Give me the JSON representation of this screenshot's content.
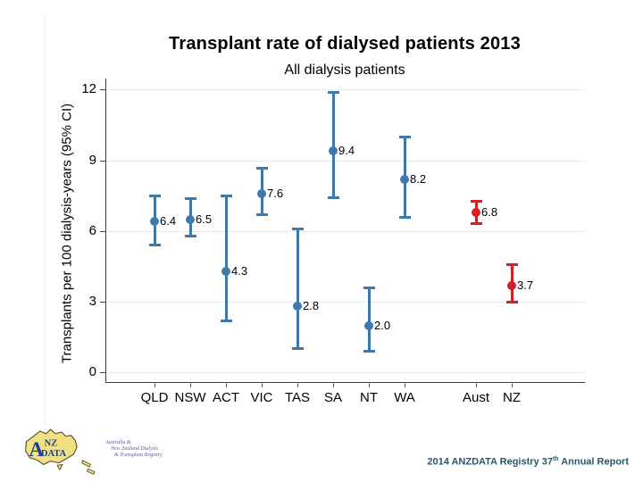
{
  "page": {
    "footer": {
      "prefix": "2014 ANZDATA Registry 37",
      "sup": "th",
      "suffix": " Annual Report"
    }
  },
  "logo": {
    "map_letter": "A",
    "map_nz": "NZ",
    "map_data": "DATA",
    "tagline_lines": [
      "Australia &",
      "New Zealand Dialysis",
      "& Transplant Registry"
    ]
  },
  "chart_data": {
    "type": "scatter",
    "title": "Transplant rate of dialysed patients 2013",
    "subtitle": "All dialysis patients",
    "ylabel": "Transplants per 100 dialysis-years (95% CI)",
    "xlabel": "",
    "ylim": [
      0,
      12.3
    ],
    "yticks": [
      0,
      3,
      6,
      9,
      12
    ],
    "grid": true,
    "legend": "none",
    "error_bars": "95% CI",
    "categories": [
      "QLD",
      "NSW",
      "ACT",
      "VIC",
      "TAS",
      "SA",
      "NT",
      "WA",
      "Aust",
      "NZ"
    ],
    "colors": {
      "state": "#3d7aab",
      "national": "#d51f26",
      "gridline": "#e3ecf2",
      "axis": "#3f3f3f"
    },
    "series": [
      {
        "name": "Transplants per 100 dialysis-years (95% CI)",
        "points": [
          {
            "category": "QLD",
            "value": 6.4,
            "label": "6.4",
            "ci_low": 5.4,
            "ci_high": 7.5,
            "group": "state"
          },
          {
            "category": "NSW",
            "value": 6.5,
            "label": "6.5",
            "ci_low": 5.8,
            "ci_high": 7.4,
            "group": "state"
          },
          {
            "category": "ACT",
            "value": 4.3,
            "label": "4.3",
            "ci_low": 2.2,
            "ci_high": 7.5,
            "group": "state"
          },
          {
            "category": "VIC",
            "value": 7.6,
            "label": "7.6",
            "ci_low": 6.7,
            "ci_high": 8.7,
            "group": "state"
          },
          {
            "category": "TAS",
            "value": 2.8,
            "label": "2.8",
            "ci_low": 1.0,
            "ci_high": 6.1,
            "group": "state"
          },
          {
            "category": "SA",
            "value": 9.4,
            "label": "9.4",
            "ci_low": 7.4,
            "ci_high": 11.9,
            "group": "state"
          },
          {
            "category": "NT",
            "value": 2.0,
            "label": "2.0",
            "ci_low": 0.9,
            "ci_high": 3.6,
            "group": "state"
          },
          {
            "category": "WA",
            "value": 8.2,
            "label": "8.2",
            "ci_low": 6.6,
            "ci_high": 10.0,
            "group": "state"
          },
          {
            "category": "Aust",
            "value": 6.8,
            "label": "6.8",
            "ci_low": 6.3,
            "ci_high": 7.3,
            "group": "national"
          },
          {
            "category": "NZ",
            "value": 3.7,
            "label": "3.7",
            "ci_low": 3.0,
            "ci_high": 4.6,
            "group": "national"
          }
        ]
      }
    ]
  }
}
